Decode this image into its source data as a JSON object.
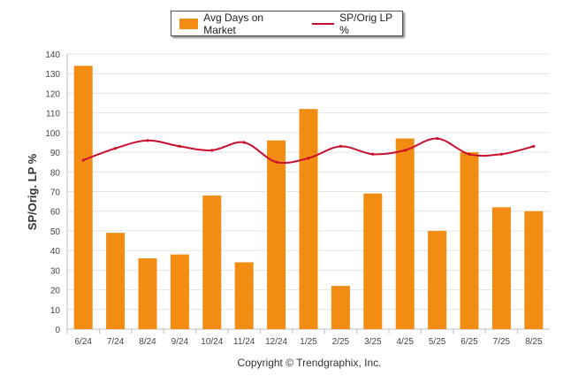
{
  "chart_data": {
    "type": "bar",
    "categories": [
      "6/24",
      "7/24",
      "8/24",
      "9/24",
      "10/24",
      "11/24",
      "12/24",
      "1/25",
      "2/25",
      "3/25",
      "4/25",
      "5/25",
      "6/25",
      "7/25",
      "8/25"
    ],
    "series": [
      {
        "name": "Avg Days on Market",
        "type": "bar",
        "color": "#F28C13",
        "values": [
          134,
          49,
          36,
          38,
          68,
          34,
          96,
          112,
          22,
          69,
          97,
          50,
          90,
          62,
          60
        ]
      },
      {
        "name": "SP/Orig LP %",
        "type": "line",
        "color": "#C8102E",
        "values": [
          86,
          92,
          96,
          93,
          91,
          95,
          85,
          87,
          93,
          89,
          91,
          97,
          89,
          89,
          93
        ]
      }
    ],
    "ylabel": "SP/Orig. LP %",
    "ylim": [
      0,
      140
    ],
    "yticks": [
      0,
      10,
      20,
      30,
      40,
      50,
      60,
      70,
      80,
      90,
      100,
      110,
      120,
      130,
      140
    ],
    "grid": true,
    "legend": "top-center"
  },
  "footer": "Copyright © Trendgraphix, Inc."
}
